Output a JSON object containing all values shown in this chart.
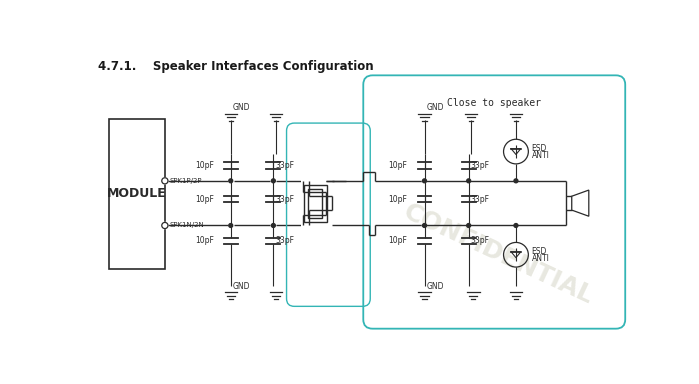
{
  "title": "4.7.1.    Speaker Interfaces Configuration",
  "close_to_speaker": "Close to speaker",
  "watermark": "CONFIDENTIAL",
  "module_label": "MODULE",
  "spk1p": "SPK1P/2P",
  "spk1n": "SPK1N/2N",
  "cap_10pf": "10pF",
  "cap_33pf": "33pF",
  "gnd": "GND",
  "esd_anti": [
    "ESD",
    "ANTI"
  ],
  "bg_color": "#ffffff",
  "line_color": "#2a2a2a",
  "teal_color": "#33b5b5",
  "watermark_color": "#ccccbb",
  "title_color": "#1a1a1a"
}
